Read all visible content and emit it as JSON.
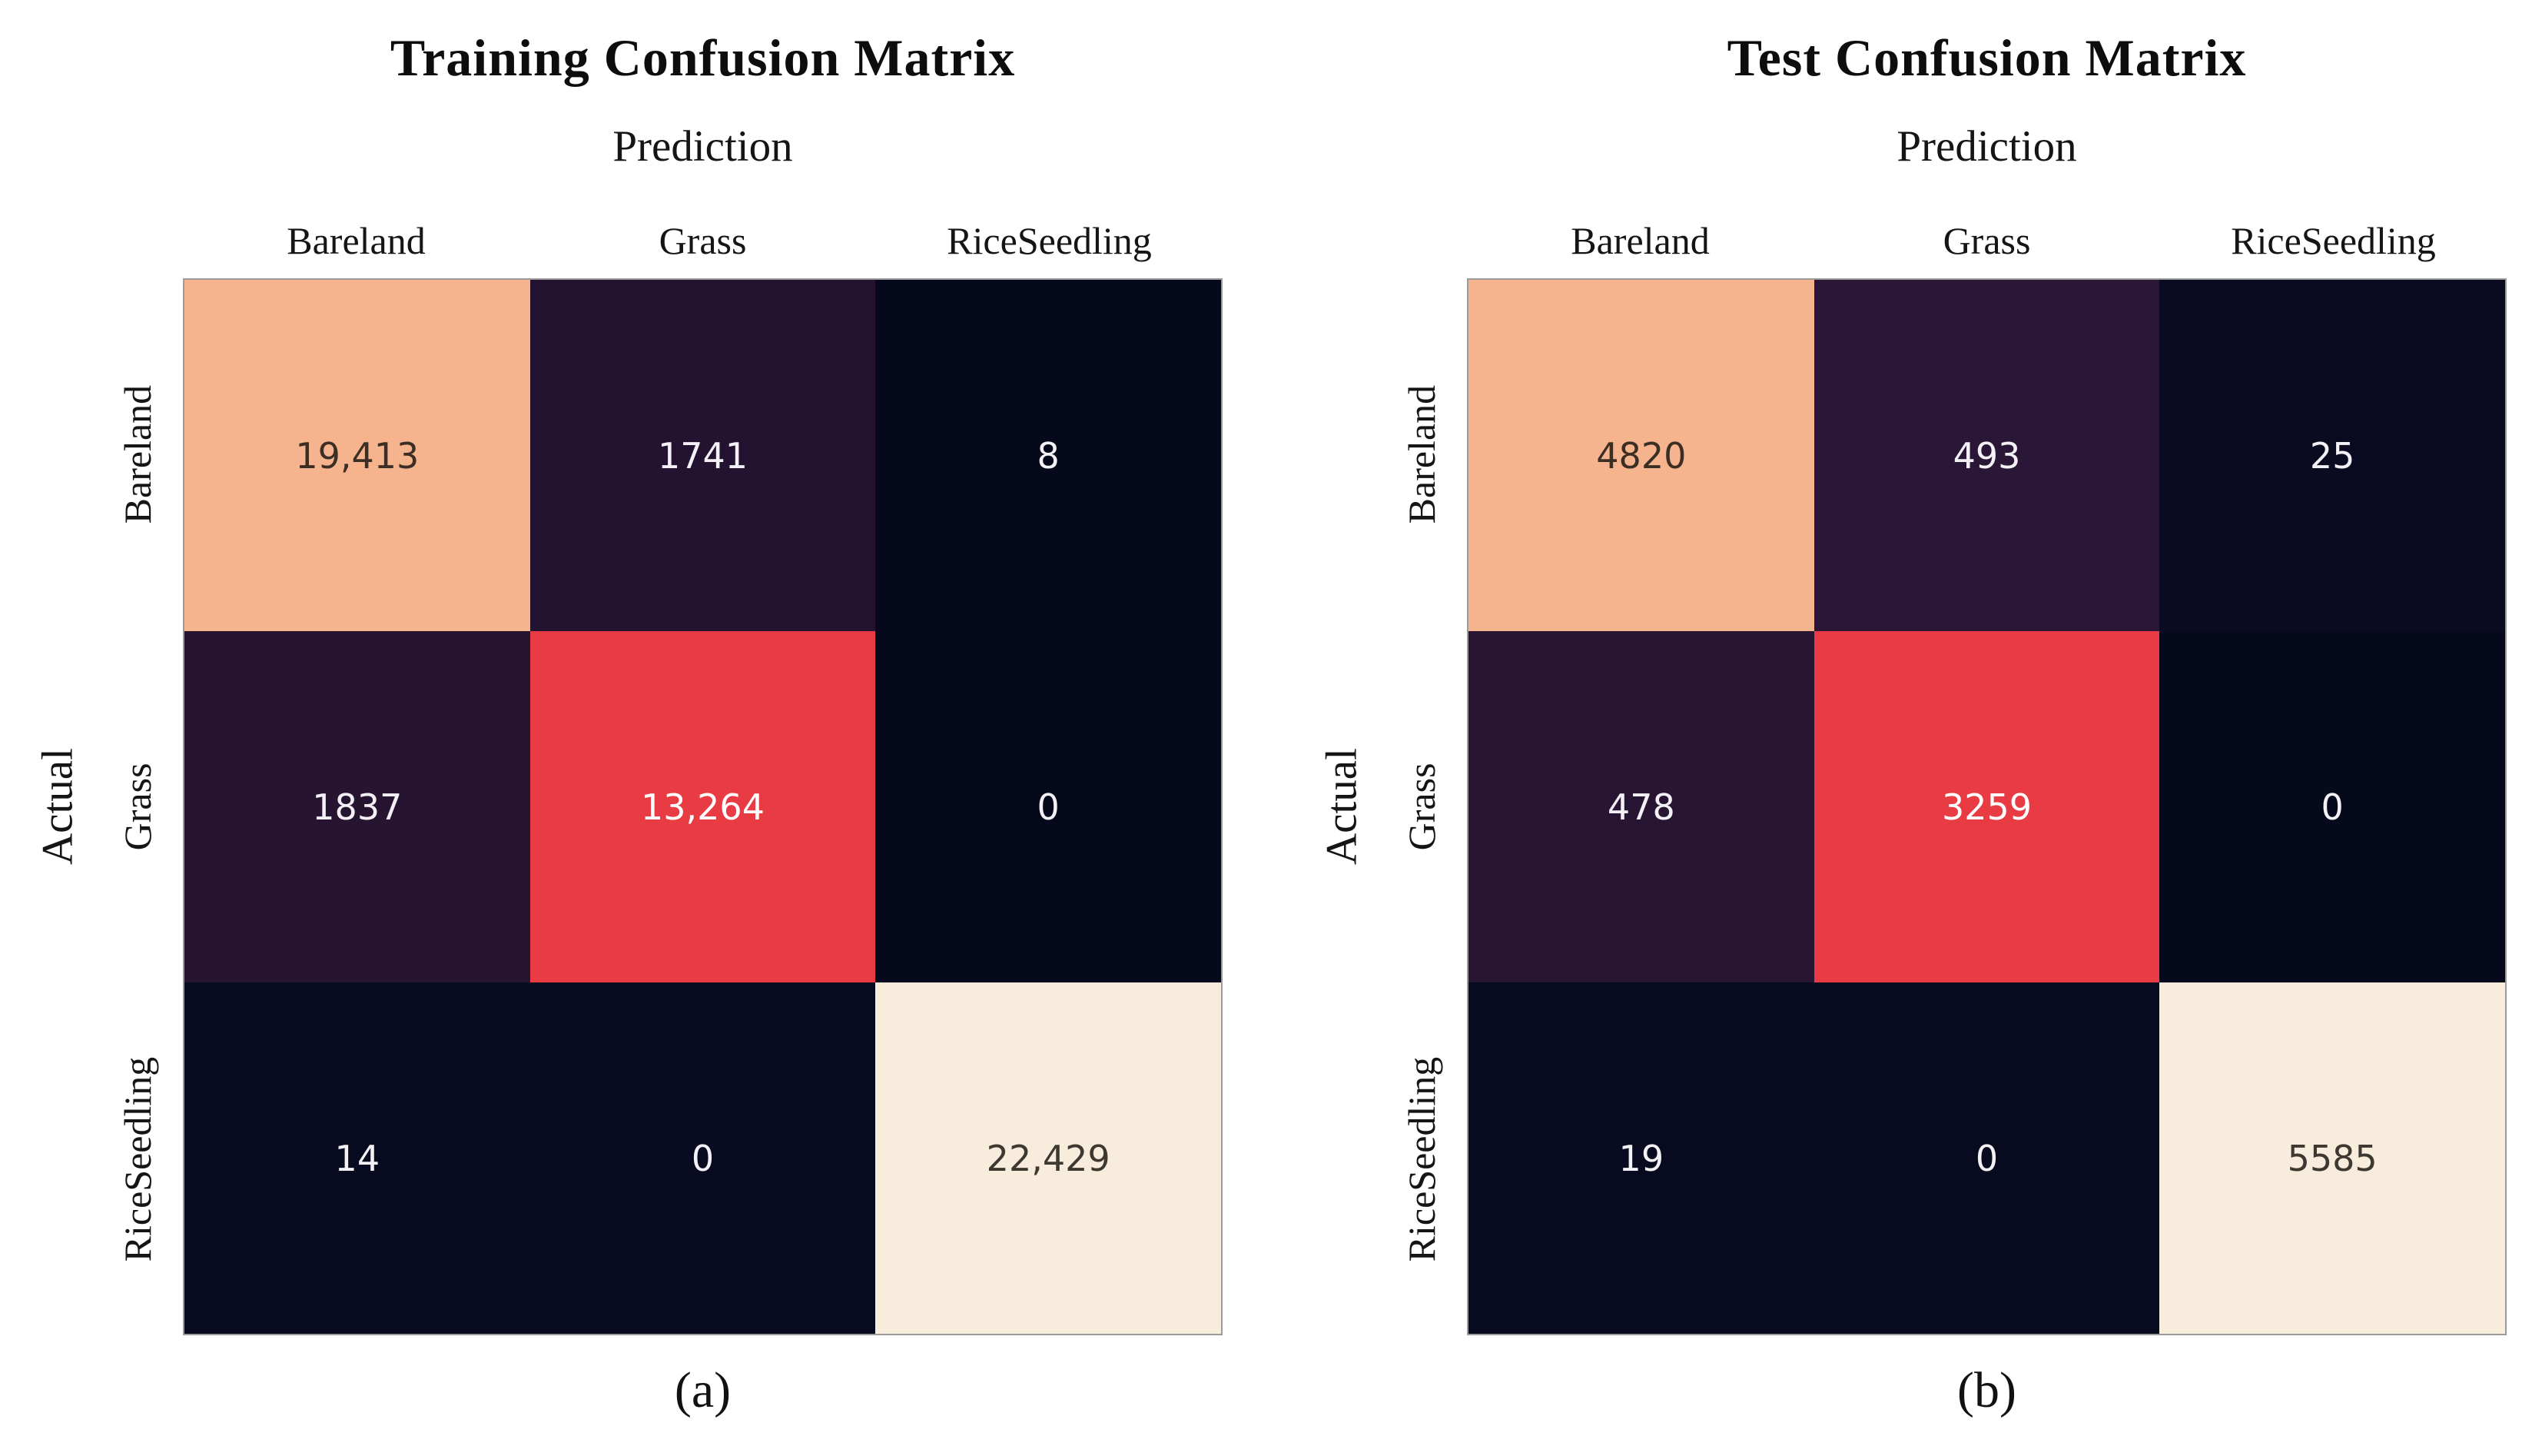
{
  "panels": [
    {
      "title": "Training Confusion Matrix",
      "x_axis_label": "Prediction",
      "y_axis_label": "Actual",
      "col_labels": [
        "Bareland",
        "Grass",
        "RiceSeedling"
      ],
      "row_labels": [
        "Bareland",
        "Grass",
        "RiceSeedling"
      ],
      "caption": "(a)"
    },
    {
      "title": "Test Confusion Matrix",
      "x_axis_label": "Prediction",
      "y_axis_label": "Actual",
      "col_labels": [
        "Bareland",
        "Grass",
        "RiceSeedling"
      ],
      "row_labels": [
        "Bareland",
        "Grass",
        "RiceSeedling"
      ],
      "caption": "(b)"
    }
  ],
  "colors": {
    "high_peach": "#F5B48D",
    "mid_purple": "#241230",
    "low_navy": "#06081B",
    "max_red": "#E93B44",
    "max_cream": "#F8ECDD",
    "text_light": "#F3F1F5",
    "text_dark": "#3B2E24",
    "matrix_border_gray": "#9B9B9B"
  },
  "chart_data": [
    {
      "type": "heatmap",
      "title": "Training Confusion Matrix",
      "xlabel": "Prediction",
      "ylabel": "Actual",
      "x_categories": [
        "Bareland",
        "Grass",
        "RiceSeedling"
      ],
      "y_categories": [
        "Bareland",
        "Grass",
        "RiceSeedling"
      ],
      "values": [
        [
          19413,
          1741,
          8
        ],
        [
          1837,
          13264,
          0
        ],
        [
          14,
          0,
          22429
        ]
      ],
      "value_labels": [
        [
          "19,413",
          "1741",
          "8"
        ],
        [
          "1837",
          "13,264",
          "0"
        ],
        [
          "14",
          "0",
          "22,429"
        ]
      ],
      "cell_colors": [
        [
          "#F5B48D",
          "#231230",
          "#06081B"
        ],
        [
          "#261431",
          "#E93B44",
          "#06081B"
        ],
        [
          "#080B1F",
          "#080B1F",
          "#F8ECDD"
        ]
      ],
      "text_colors": [
        [
          "#3B2E24",
          "#F3F1F5",
          "#F3F1F5"
        ],
        [
          "#F3F1F5",
          "#FFFFFF",
          "#F3F1F5"
        ],
        [
          "#F3F1F5",
          "#F3F1F5",
          "#3D3830"
        ]
      ],
      "colormap": "rocket-like",
      "legend": "none",
      "caption": "(a)"
    },
    {
      "type": "heatmap",
      "title": "Test Confusion Matrix",
      "xlabel": "Prediction",
      "ylabel": "Actual",
      "x_categories": [
        "Bareland",
        "Grass",
        "RiceSeedling"
      ],
      "y_categories": [
        "Bareland",
        "Grass",
        "RiceSeedling"
      ],
      "values": [
        [
          4820,
          493,
          25
        ],
        [
          478,
          3259,
          0
        ],
        [
          19,
          0,
          5585
        ]
      ],
      "value_labels": [
        [
          "4820",
          "493",
          "25"
        ],
        [
          "478",
          "3259",
          "0"
        ],
        [
          "19",
          "0",
          "5585"
        ]
      ],
      "cell_colors": [
        [
          "#F5B48D",
          "#2A1636",
          "#0A0A20"
        ],
        [
          "#281534",
          "#E93B44",
          "#06081B"
        ],
        [
          "#080B1F",
          "#080B1F",
          "#F8ECDD"
        ]
      ],
      "text_colors": [
        [
          "#3B2E24",
          "#F3F1F5",
          "#F3F1F5"
        ],
        [
          "#F3F1F5",
          "#FFFFFF",
          "#F3F1F5"
        ],
        [
          "#F3F1F5",
          "#F3F1F5",
          "#3D3830"
        ]
      ],
      "colormap": "rocket-like",
      "legend": "none",
      "caption": "(b)"
    }
  ]
}
